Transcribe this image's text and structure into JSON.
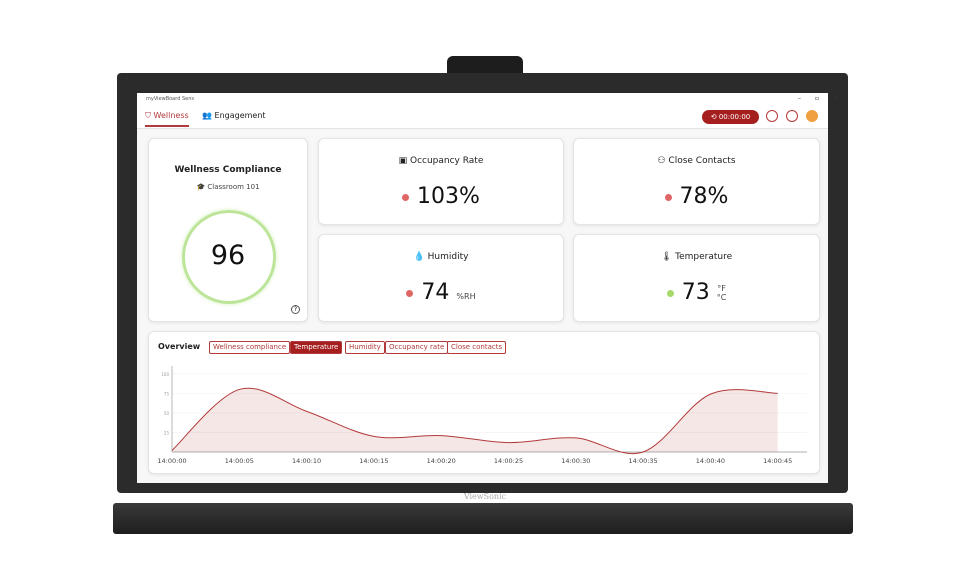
{
  "window": {
    "title": "myViewBoard Sens"
  },
  "tabs": [
    "Wellness",
    "Engagement"
  ],
  "timer": "00:00:00",
  "compliance": {
    "title": "Wellness Compliance",
    "room": "Classroom 101",
    "score": "96"
  },
  "cards": [
    {
      "label": "Occupancy Rate",
      "value": "103%"
    },
    {
      "label": "Close Contacts",
      "value": "78%"
    },
    {
      "label": "Humidity",
      "value": "74",
      "unit": "%RH"
    },
    {
      "label": "Temperature",
      "value": "73",
      "unit": "°F",
      "unit2": "°C"
    }
  ],
  "overview": {
    "title": "Overview",
    "filters": [
      "Wellness compliance",
      "Temperature",
      "Humidity",
      "Occupancy rate",
      "Close contacts"
    ]
  },
  "brand": "ViewSonic",
  "chart_data": {
    "type": "area",
    "categories": [
      "14:00:00",
      "14:00:05",
      "14:00:10",
      "14:00:15",
      "14:00:20",
      "14:00:25",
      "14:00:30",
      "14:00:35",
      "14:00:40",
      "14:00:45"
    ],
    "values": [
      2,
      80,
      52,
      20,
      21,
      12,
      18,
      0,
      74,
      75
    ],
    "color": "#b33a3a",
    "ylim": [
      0,
      110
    ],
    "yticks": [
      25,
      50,
      75,
      100
    ],
    "grid": true
  }
}
